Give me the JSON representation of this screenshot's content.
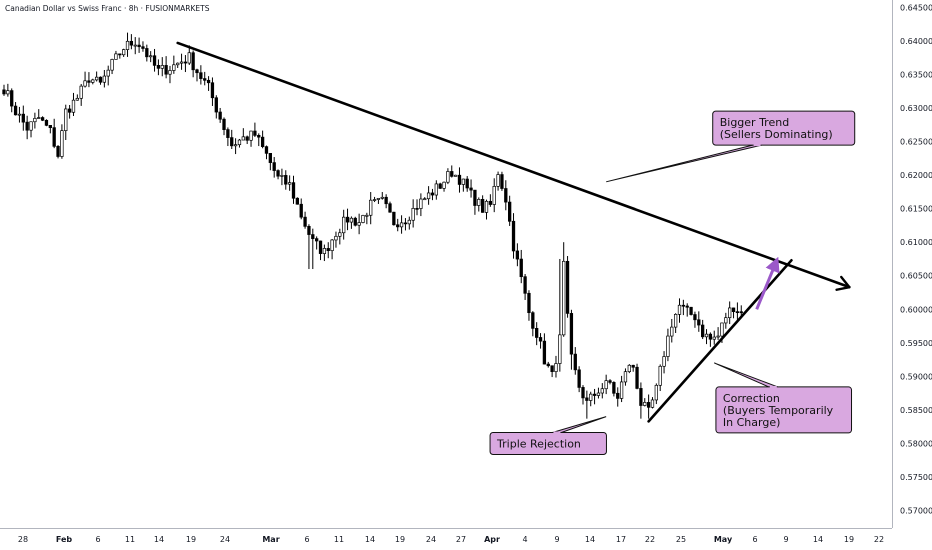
{
  "chart_data": {
    "type": "candlestick",
    "title": "Canadian Dollar vs Swiss Franc · 8h · FUSIONMARKETS",
    "ylim": [
      0.5675,
      0.645
    ],
    "y_ticks": [
      "0.64500",
      "0.64000",
      "0.63500",
      "0.63000",
      "0.62500",
      "0.62000",
      "0.61500",
      "0.61000",
      "0.60500",
      "0.60000",
      "0.59500",
      "0.59000",
      "0.58500",
      "0.58000",
      "0.57500",
      "0.57000"
    ],
    "x_ticks": [
      "28",
      "Feb",
      "6",
      "11",
      "14",
      "19",
      "24",
      "Mar",
      "6",
      "11",
      "14",
      "19",
      "24",
      "27",
      "Apr",
      "4",
      "9",
      "14",
      "17",
      "22",
      "25",
      "May",
      "6",
      "9",
      "14",
      "19",
      "22"
    ],
    "x_major_ticks": [
      "Feb",
      "Mar",
      "Apr",
      "May"
    ],
    "colors": {
      "bull": "#ffffff",
      "bear": "#000000",
      "outline": "#000000",
      "annotation_fill": "#d9a8e0",
      "annotation_stroke": "#111111",
      "arrow": "#9b59c9"
    },
    "anchors": [
      {
        "i": 0,
        "p": 0.6325
      },
      {
        "i": 3,
        "p": 0.629
      },
      {
        "i": 6,
        "p": 0.6265
      },
      {
        "i": 9,
        "p": 0.628
      },
      {
        "i": 12,
        "p": 0.626
      },
      {
        "i": 14,
        "p": 0.6225
      },
      {
        "i": 16,
        "p": 0.629
      },
      {
        "i": 19,
        "p": 0.631
      },
      {
        "i": 22,
        "p": 0.634
      },
      {
        "i": 25,
        "p": 0.633
      },
      {
        "i": 28,
        "p": 0.636
      },
      {
        "i": 31,
        "p": 0.6385
      },
      {
        "i": 34,
        "p": 0.6395
      },
      {
        "i": 36,
        "p": 0.6385
      },
      {
        "i": 38,
        "p": 0.6365
      },
      {
        "i": 40,
        "p": 0.635
      },
      {
        "i": 43,
        "p": 0.6355
      },
      {
        "i": 46,
        "p": 0.6365
      },
      {
        "i": 48,
        "p": 0.637
      },
      {
        "i": 50,
        "p": 0.635
      },
      {
        "i": 53,
        "p": 0.6325
      },
      {
        "i": 56,
        "p": 0.628
      },
      {
        "i": 59,
        "p": 0.624
      },
      {
        "i": 62,
        "p": 0.625
      },
      {
        "i": 65,
        "p": 0.6255
      },
      {
        "i": 68,
        "p": 0.6225
      },
      {
        "i": 71,
        "p": 0.619
      },
      {
        "i": 74,
        "p": 0.618
      },
      {
        "i": 77,
        "p": 0.6135
      },
      {
        "i": 80,
        "p": 0.6095
      },
      {
        "i": 83,
        "p": 0.608
      },
      {
        "i": 86,
        "p": 0.611
      },
      {
        "i": 89,
        "p": 0.613
      },
      {
        "i": 92,
        "p": 0.6125
      },
      {
        "i": 95,
        "p": 0.615
      },
      {
        "i": 98,
        "p": 0.6155
      },
      {
        "i": 101,
        "p": 0.6125
      },
      {
        "i": 104,
        "p": 0.613
      },
      {
        "i": 107,
        "p": 0.615
      },
      {
        "i": 110,
        "p": 0.6165
      },
      {
        "i": 113,
        "p": 0.618
      },
      {
        "i": 116,
        "p": 0.62
      },
      {
        "i": 118,
        "p": 0.619
      },
      {
        "i": 121,
        "p": 0.6165
      },
      {
        "i": 124,
        "p": 0.6145
      },
      {
        "i": 126,
        "p": 0.615
      },
      {
        "i": 128,
        "p": 0.62
      },
      {
        "i": 130,
        "p": 0.616
      },
      {
        "i": 132,
        "p": 0.609
      },
      {
        "i": 134,
        "p": 0.604
      },
      {
        "i": 136,
        "p": 0.599
      },
      {
        "i": 138,
        "p": 0.596
      },
      {
        "i": 140,
        "p": 0.592
      },
      {
        "i": 142,
        "p": 0.5895
      },
      {
        "i": 144,
        "p": 0.595
      },
      {
        "i": 145,
        "p": 0.606
      },
      {
        "i": 146,
        "p": 0.598
      },
      {
        "i": 147,
        "p": 0.592
      },
      {
        "i": 149,
        "p": 0.588
      },
      {
        "i": 151,
        "p": 0.5855
      },
      {
        "i": 154,
        "p": 0.5875
      },
      {
        "i": 157,
        "p": 0.5885
      },
      {
        "i": 159,
        "p": 0.586
      },
      {
        "i": 161,
        "p": 0.5905
      },
      {
        "i": 163,
        "p": 0.591
      },
      {
        "i": 165,
        "p": 0.5855
      },
      {
        "i": 167,
        "p": 0.584
      },
      {
        "i": 169,
        "p": 0.5875
      },
      {
        "i": 171,
        "p": 0.593
      },
      {
        "i": 173,
        "p": 0.5975
      },
      {
        "i": 175,
        "p": 0.6
      },
      {
        "i": 177,
        "p": 0.599
      },
      {
        "i": 179,
        "p": 0.5985
      },
      {
        "i": 181,
        "p": 0.596
      },
      {
        "i": 183,
        "p": 0.595
      },
      {
        "i": 185,
        "p": 0.5955
      },
      {
        "i": 187,
        "p": 0.5985
      },
      {
        "i": 189,
        "p": 0.6
      },
      {
        "i": 191,
        "p": 0.599
      }
    ],
    "trendlines": [
      {
        "name": "bigger-trend-line",
        "from": {
          "i": 45,
          "p": 0.6392
        },
        "to": {
          "i": 219,
          "p": 0.6028
        },
        "arrow_end": true
      },
      {
        "name": "correction-line",
        "from": {
          "i": 167,
          "p": 0.5828
        },
        "to": {
          "i": 204,
          "p": 0.6068
        },
        "arrow_end": false
      }
    ],
    "annotations": [
      {
        "name": "bigger-trend-label",
        "lines": [
          "Bigger Trend",
          "(Sellers Dominating)"
        ],
        "anchor": {
          "i": 202,
          "p": 0.6265
        },
        "pointer_to": {
          "i": 156,
          "p": 0.6185
        }
      },
      {
        "name": "triple-rejection-label",
        "lines": [
          "Triple Rejection"
        ],
        "anchor": {
          "i": 141,
          "p": 0.5795
        },
        "pointer_to": {
          "i": 156,
          "p": 0.5835
        }
      },
      {
        "name": "correction-label",
        "lines": [
          "Correction",
          "(Buyers Temporarily",
          "In Charge)"
        ],
        "anchor": {
          "i": 202,
          "p": 0.5845
        },
        "pointer_to": {
          "i": 184,
          "p": 0.5915
        }
      }
    ],
    "breakout_arrow": {
      "from": {
        "i": 195,
        "p": 0.5995
      },
      "to": {
        "i": 200,
        "p": 0.6065
      }
    }
  }
}
